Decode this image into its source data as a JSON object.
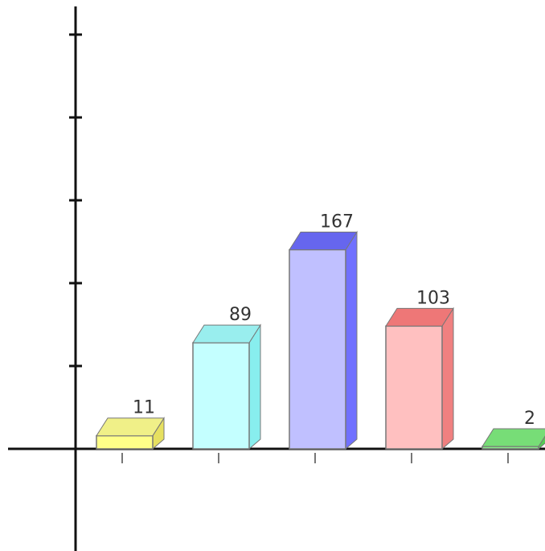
{
  "chart_data": {
    "type": "bar",
    "style": "3d",
    "categories": [
      "",
      "",
      "",
      "",
      ""
    ],
    "values": [
      11,
      89,
      167,
      103,
      2
    ],
    "data_labels": [
      "11",
      "89",
      "167",
      "103",
      "2"
    ],
    "colors": [
      "#ffff88",
      "#c4ffff",
      "#c0c0ff",
      "#ffc0c0",
      "#88ee88"
    ],
    "side_colors": [
      "#e6e060",
      "#88eeee",
      "#7070ff",
      "#f08080",
      "#55cc55"
    ],
    "top_colors": [
      "#f0f088",
      "#99eeee",
      "#6666ee",
      "#ee7777",
      "#77dd77"
    ],
    "ylim": [
      -125,
      418
    ],
    "y_tick_step": 69.5,
    "grid": false,
    "title": "",
    "xlabel": "",
    "ylabel": ""
  }
}
